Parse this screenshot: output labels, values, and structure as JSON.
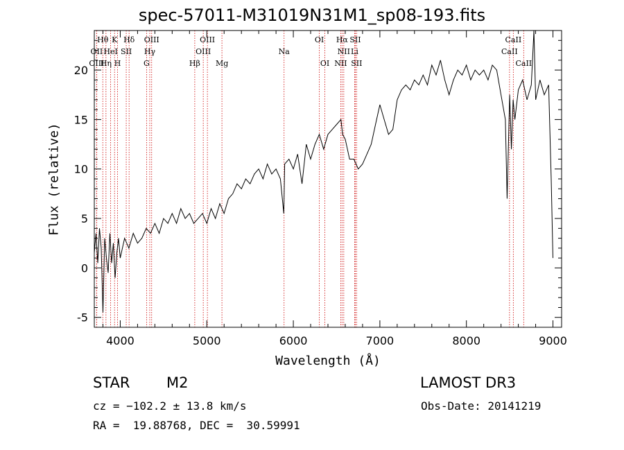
{
  "chart_data": {
    "type": "line",
    "title": "spec-57011-M31019N31M1_sp08-193.fits",
    "xlabel": "Wavelength (Å)",
    "ylabel": "Flux (relative)",
    "xlim": [
      3700,
      9100
    ],
    "ylim": [
      -6,
      24
    ],
    "xticks": [
      4000,
      5000,
      6000,
      7000,
      8000,
      9000
    ],
    "yticks": [
      -5,
      0,
      5,
      10,
      15,
      20
    ],
    "series": [
      {
        "name": "flux",
        "x": [
          3700,
          3720,
          3740,
          3760,
          3780,
          3800,
          3820,
          3840,
          3860,
          3880,
          3900,
          3920,
          3940,
          3960,
          3980,
          4000,
          4050,
          4100,
          4150,
          4200,
          4250,
          4300,
          4350,
          4400,
          4450,
          4500,
          4550,
          4600,
          4650,
          4700,
          4750,
          4800,
          4850,
          4900,
          4950,
          5000,
          5050,
          5100,
          5150,
          5200,
          5250,
          5300,
          5350,
          5400,
          5450,
          5500,
          5550,
          5600,
          5650,
          5700,
          5750,
          5800,
          5850,
          5890,
          5900,
          5950,
          6000,
          6050,
          6100,
          6150,
          6200,
          6250,
          6300,
          6350,
          6400,
          6450,
          6500,
          6550,
          6570,
          6600,
          6650,
          6700,
          6750,
          6800,
          6850,
          6900,
          6950,
          7000,
          7050,
          7100,
          7150,
          7200,
          7250,
          7300,
          7350,
          7400,
          7450,
          7500,
          7550,
          7600,
          7650,
          7700,
          7750,
          7800,
          7850,
          7900,
          7950,
          8000,
          8050,
          8100,
          8150,
          8200,
          8250,
          8300,
          8350,
          8400,
          8450,
          8470,
          8500,
          8520,
          8540,
          8560,
          8600,
          8650,
          8700,
          8750,
          8780,
          8800,
          8850,
          8900,
          8950,
          8980,
          9000
        ],
        "y": [
          1.5,
          3.5,
          0.5,
          4.0,
          2.0,
          -4.5,
          3.0,
          1.0,
          -0.5,
          3.5,
          0.5,
          2.5,
          -1.0,
          1.5,
          3.0,
          1.0,
          3.0,
          2.0,
          3.5,
          2.5,
          3.0,
          4.0,
          3.5,
          4.5,
          3.5,
          5.0,
          4.5,
          5.5,
          4.5,
          6.0,
          5.0,
          5.5,
          4.5,
          5.0,
          5.5,
          4.5,
          6.0,
          5.0,
          6.5,
          5.5,
          7.0,
          7.5,
          8.5,
          8.0,
          9.0,
          8.5,
          9.5,
          10.0,
          9.0,
          10.5,
          9.5,
          10.0,
          9.0,
          5.5,
          10.5,
          11.0,
          10.0,
          11.5,
          8.5,
          12.5,
          11.0,
          12.5,
          13.5,
          12.0,
          13.5,
          14.0,
          14.5,
          15.0,
          13.5,
          13.0,
          11.0,
          11.0,
          10.0,
          10.5,
          11.5,
          12.5,
          14.5,
          16.5,
          15.0,
          13.5,
          14.0,
          17.0,
          18.0,
          18.5,
          18.0,
          19.0,
          18.5,
          19.5,
          18.5,
          20.5,
          19.5,
          21.0,
          19.0,
          17.5,
          19.0,
          20.0,
          19.5,
          20.5,
          19.0,
          20.0,
          19.5,
          20.0,
          19.0,
          20.5,
          20.0,
          17.5,
          15.0,
          7.0,
          17.5,
          12.0,
          17.0,
          15.0,
          18.0,
          19.0,
          17.0,
          18.5,
          24.0,
          17.0,
          19.0,
          17.5,
          18.5,
          9.0,
          1.0
        ]
      }
    ],
    "lines": [
      {
        "label": "Hθ",
        "x": 3798,
        "row": 1
      },
      {
        "label": "OII",
        "x": 3727,
        "row": 2
      },
      {
        "label": "OIII",
        "x": 3727,
        "row": 3
      },
      {
        "label": "K",
        "x": 3934,
        "row": 1
      },
      {
        "label": "HeI",
        "x": 3889,
        "row": 2
      },
      {
        "label": "Hη",
        "x": 3835,
        "row": 3
      },
      {
        "label": "Hδ",
        "x": 4102,
        "row": 1
      },
      {
        "label": "SII",
        "x": 4069,
        "row": 2
      },
      {
        "label": "H",
        "x": 3969,
        "row": 3
      },
      {
        "label": "OIII",
        "x": 4363,
        "row": 1
      },
      {
        "label": "Hγ",
        "x": 4341,
        "row": 2
      },
      {
        "label": "G",
        "x": 4304,
        "row": 3
      },
      {
        "label": "OIII",
        "x": 5007,
        "row": 1
      },
      {
        "label": "OIII",
        "x": 4959,
        "row": 2
      },
      {
        "label": "Hβ",
        "x": 4861,
        "row": 3
      },
      {
        "label": "Mg",
        "x": 5175,
        "row": 3
      },
      {
        "label": "Na",
        "x": 5893,
        "row": 2
      },
      {
        "label": "OI",
        "x": 6300,
        "row": 1
      },
      {
        "label": "OI",
        "x": 6364,
        "row": 3
      },
      {
        "label": "Hα",
        "x": 6563,
        "row": 1
      },
      {
        "label": "NII",
        "x": 6583,
        "row": 2
      },
      {
        "label": "NII",
        "x": 6548,
        "row": 3
      },
      {
        "label": "SII",
        "x": 6716,
        "row": 1
      },
      {
        "label": "Li",
        "x": 6708,
        "row": 2
      },
      {
        "label": "SII",
        "x": 6731,
        "row": 3
      },
      {
        "label": "CaII",
        "x": 8542,
        "row": 1
      },
      {
        "label": "CaII",
        "x": 8498,
        "row": 2
      },
      {
        "label": "CaII",
        "x": 8662,
        "row": 3
      }
    ]
  },
  "info": {
    "class": "STAR",
    "subclass": "M2",
    "survey": "LAMOST DR3",
    "cz": "cz = −102.2 ± 13.8 km/s",
    "obs_date": "Obs-Date: 20141219",
    "radec": "RA =  19.88768, DEC =  30.59991"
  },
  "colors": {
    "line": "#000000",
    "marker": "#cc0000"
  }
}
